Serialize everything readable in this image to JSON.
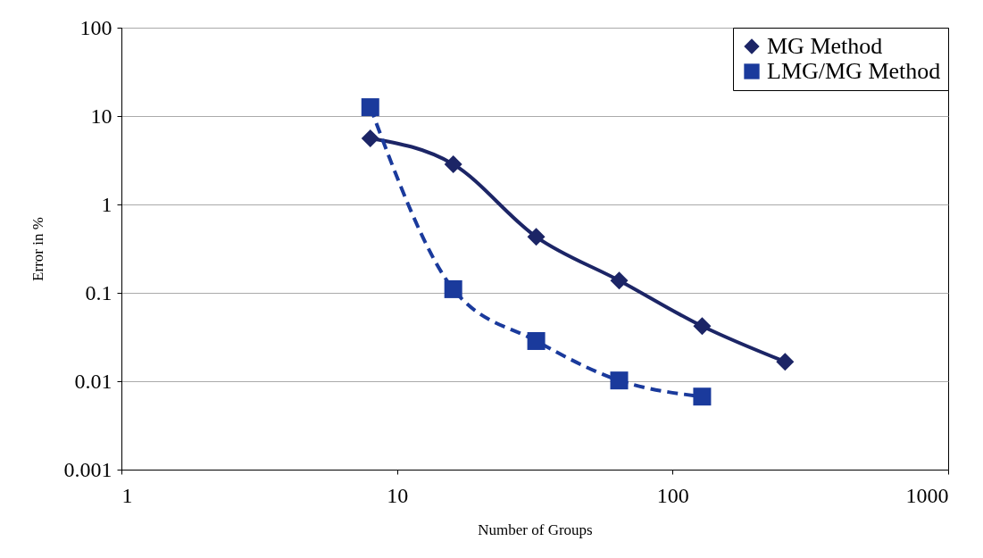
{
  "chart_data": {
    "type": "line",
    "xlabel": "Number of Groups",
    "ylabel": "Error in %",
    "log": "xy",
    "grid": "y",
    "legend": "top right",
    "xlim": [
      1,
      1000
    ],
    "xticks": [
      1,
      10,
      100,
      1000
    ],
    "ylim": [
      0.001,
      100
    ],
    "yticks": [
      0.001,
      0.01,
      0.1,
      1,
      10,
      100
    ],
    "series": [
      {
        "name": "MG Method",
        "color": "#1c2566",
        "marker": "diamond",
        "line_style": "solid",
        "x": [
          8,
          16,
          32,
          64,
          128,
          256
        ],
        "values": [
          5.6,
          2.85,
          0.43,
          0.138,
          0.042,
          0.0166
        ]
      },
      {
        "name": "LMG/MG Method",
        "color": "#1a3a9c",
        "marker": "square",
        "line_style": "dashed",
        "x": [
          8,
          16,
          32,
          64,
          128
        ],
        "values": [
          12.6,
          0.11,
          0.0285,
          0.0102,
          0.0067
        ]
      }
    ]
  }
}
